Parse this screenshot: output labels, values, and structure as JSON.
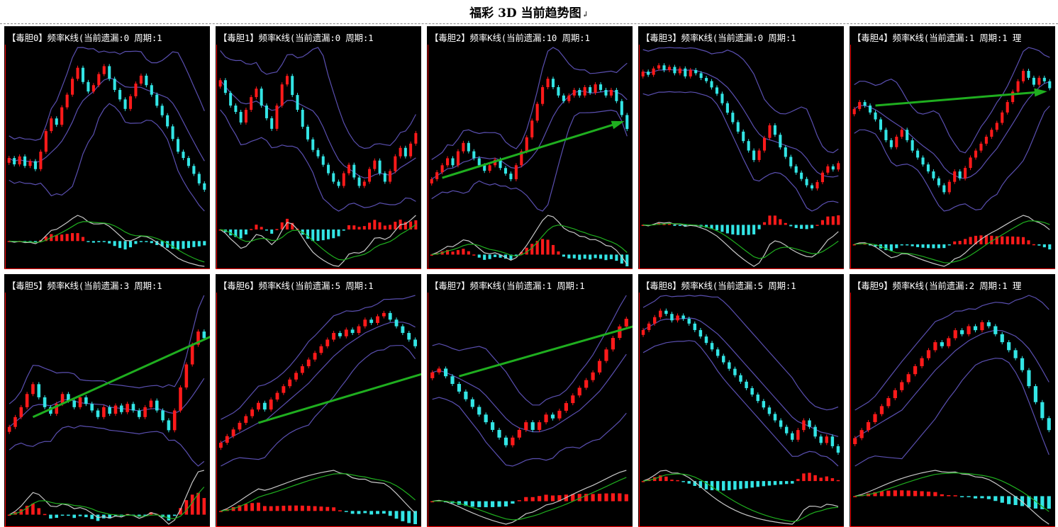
{
  "page": {
    "title": "福彩 3D 当前趋势图",
    "title_suffix": "↲"
  },
  "colors": {
    "background": "#000000",
    "axis": "#ff0000",
    "up_candle": "#ff1a1a",
    "down_candle": "#33e5e5",
    "bollinger": "#5a4fb0",
    "indicator_fast": "#c8c8c8",
    "indicator_slow": "#1fae1f",
    "trend_arrow": "#1fae1f"
  },
  "chart_data": [
    {
      "type": "candlestick",
      "panel_label": "【毒胆0】频率K线(当前遗漏:0 周期:1",
      "closes": [
        38,
        34,
        39,
        33,
        36,
        31,
        42,
        55,
        63,
        59,
        70,
        78,
        88,
        95,
        86,
        80,
        84,
        91,
        96,
        88,
        81,
        75,
        69,
        77,
        85,
        90,
        84,
        78,
        71,
        65,
        58,
        50,
        42,
        38,
        33,
        28,
        22,
        18
      ],
      "arrow": null
    },
    {
      "type": "candlestick",
      "panel_label": "【毒胆1】频率K线(当前遗漏:0 周期:1",
      "closes": [
        70,
        64,
        58,
        55,
        50,
        56,
        62,
        66,
        58,
        52,
        47,
        58,
        68,
        72,
        63,
        56,
        48,
        42,
        37,
        34,
        30,
        26,
        22,
        20,
        26,
        30,
        24,
        20,
        22,
        28,
        32,
        26,
        22,
        27,
        34,
        38,
        34,
        40,
        45
      ],
      "arrow": null
    },
    {
      "type": "candlestick",
      "panel_label": "【毒胆2】频率K线(当前遗漏:10 周期:1",
      "closes": [
        20,
        25,
        30,
        35,
        30,
        40,
        46,
        40,
        35,
        30,
        26,
        30,
        34,
        28,
        24,
        20,
        30,
        40,
        50,
        62,
        74,
        86,
        92,
        86,
        80,
        76,
        80,
        84,
        80,
        86,
        82,
        88,
        84,
        80,
        84,
        76,
        66,
        56
      ],
      "arrow": {
        "from": [
          2,
          21
        ],
        "to": [
          36,
          61
        ]
      }
    },
    {
      "type": "candlestick",
      "panel_label": "【毒胆3】频率K线(当前遗漏:0 周期:1",
      "closes": [
        94,
        92,
        96,
        98,
        95,
        97,
        93,
        96,
        91,
        95,
        93,
        90,
        88,
        84,
        80,
        74,
        68,
        62,
        56,
        50,
        44,
        38,
        44,
        52,
        60,
        54,
        46,
        40,
        34,
        30,
        26,
        22,
        20,
        24,
        30,
        34,
        32,
        36
      ],
      "arrow": null
    },
    {
      "type": "candlestick",
      "panel_label": "【毒胆4】频率K线(当前遗漏:1 周期:1 理",
      "closes": [
        72,
        76,
        74,
        70,
        66,
        60,
        54,
        50,
        56,
        60,
        54,
        48,
        44,
        40,
        36,
        32,
        28,
        24,
        30,
        36,
        32,
        38,
        44,
        48,
        52,
        56,
        60,
        64,
        70,
        76,
        82,
        88,
        94,
        90,
        86,
        90,
        88,
        84
      ],
      "arrow": {
        "from": [
          4,
          74
        ],
        "to": [
          36,
          82
        ]
      }
    },
    {
      "type": "candlestick",
      "panel_label": "【毒胆5】频率K线(当前遗漏:3 周期:1",
      "closes": [
        20,
        26,
        32,
        40,
        46,
        38,
        32,
        28,
        34,
        40,
        36,
        32,
        38,
        34,
        30,
        26,
        32,
        28,
        33,
        29,
        34,
        30,
        26,
        32,
        36,
        30,
        24,
        18,
        30,
        44,
        58,
        70,
        78,
        74
      ],
      "arrow": {
        "from": [
          4,
          26
        ],
        "to": [
          36,
          78
        ]
      }
    },
    {
      "type": "candlestick",
      "panel_label": "【毒胆6】频率K线(当前遗漏:5 周期:1",
      "closes": [
        10,
        14,
        18,
        22,
        26,
        30,
        34,
        30,
        36,
        40,
        44,
        48,
        52,
        56,
        60,
        64,
        68,
        72,
        76,
        74,
        78,
        76,
        80,
        84,
        82,
        86,
        88,
        84,
        80,
        76,
        72,
        68
      ],
      "arrow": {
        "from": [
          6,
          22
        ],
        "to": [
          38,
          58
        ]
      }
    },
    {
      "type": "candlestick",
      "panel_label": "【毒胆7】频率K线(当前遗漏:1 周期:1",
      "closes": [
        60,
        62,
        58,
        54,
        50,
        46,
        42,
        38,
        34,
        30,
        26,
        22,
        26,
        30,
        34,
        30,
        34,
        38,
        36,
        40,
        44,
        48,
        52,
        56,
        60,
        66,
        72,
        78,
        84,
        88
      ],
      "arrow": {
        "from": [
          4,
          58
        ],
        "to": [
          36,
          90
        ]
      }
    },
    {
      "type": "candlestick",
      "panel_label": "【毒胆8】频率K线(当前遗漏:5 周期:1",
      "closes": [
        86,
        90,
        94,
        98,
        96,
        92,
        95,
        93,
        90,
        86,
        82,
        78,
        74,
        70,
        66,
        62,
        58,
        54,
        50,
        46,
        42,
        38,
        34,
        30,
        26,
        22,
        18,
        24,
        30,
        26,
        20,
        16,
        20,
        14,
        10
      ],
      "arrow": null
    },
    {
      "type": "candlestick",
      "panel_label": "【毒胆9】频率K线(当前遗漏:2 周期:1 理",
      "closes": [
        30,
        34,
        38,
        42,
        46,
        50,
        54,
        58,
        62,
        66,
        70,
        74,
        78,
        76,
        80,
        84,
        82,
        86,
        84,
        88,
        86,
        82,
        78,
        74,
        70,
        64,
        56,
        48,
        40,
        34
      ],
      "arrow": null
    }
  ]
}
